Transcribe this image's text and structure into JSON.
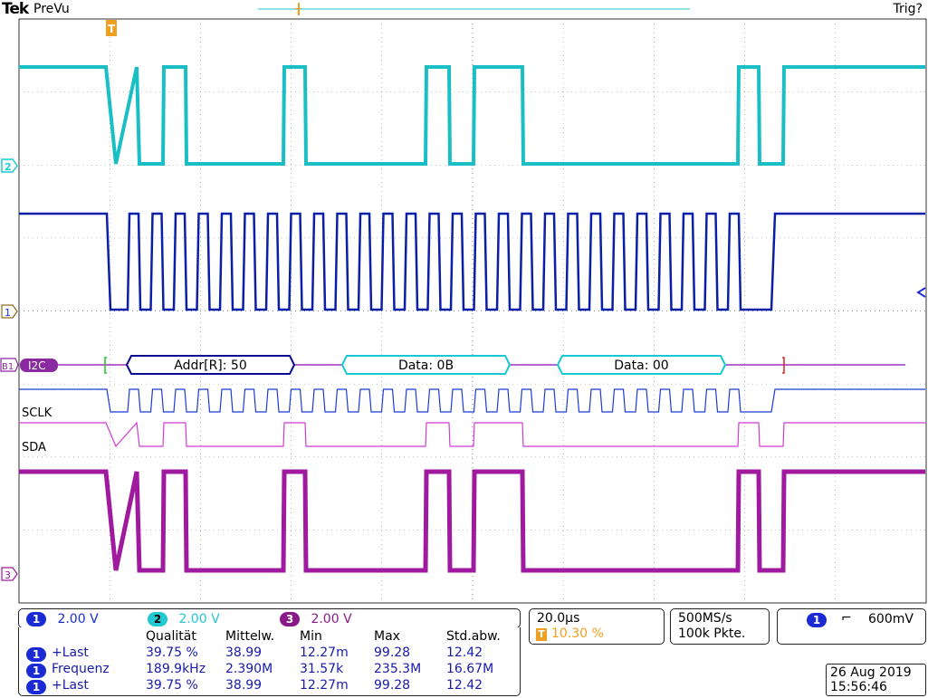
{
  "header": {
    "logo": "Tek",
    "acq_state": "PreVu",
    "trig_status": "Trig?"
  },
  "trigger_marker": {
    "label": "T"
  },
  "channels": {
    "ch2_marker": "2",
    "ch1_marker": "1",
    "ch3_marker": "3",
    "bus_marker": "B1",
    "bus_type": "I2C"
  },
  "bus_decode": [
    {
      "text": "Addr[R]: 50",
      "color": "#0a0a90"
    },
    {
      "text": "Data: 0B",
      "color": "#17c8d4"
    },
    {
      "text": "Data: 00",
      "color": "#17c8d4"
    }
  ],
  "digital_labels": {
    "sclk": "SCLK",
    "sda": "SDA"
  },
  "vertical": [
    {
      "ch": "1",
      "scale": "2.00 V",
      "color": "#1a2bd6"
    },
    {
      "ch": "2",
      "scale": "2.00 V",
      "color": "#22c9d2"
    },
    {
      "ch": "3",
      "scale": "2.00 V",
      "color": "#8a1a8a"
    }
  ],
  "horizontal": {
    "timebase": "20.0µs",
    "trigger_pos_icon": "T",
    "trigger_pos": "10.30 %"
  },
  "acquisition": {
    "sample_rate": "500MS/s",
    "record_length": "100k Pkte."
  },
  "trigger": {
    "source": "1",
    "slope_icon": "falling-edge-icon",
    "slope_glyph": "⌐",
    "level": "600mV"
  },
  "measurements": {
    "headers": [
      "Qualität",
      "Mittelw.",
      "Min",
      "Max",
      "Std.abw."
    ],
    "rows": [
      {
        "source": "1",
        "name": "+Last",
        "values": [
          "39.75 %",
          "38.99",
          "12.27m",
          "99.28",
          "12.42"
        ]
      },
      {
        "source": "1",
        "name": "Frequenz",
        "values": [
          "189.9kHz",
          "2.390M",
          "31.57k",
          "235.3M",
          "16.67M"
        ]
      },
      {
        "source": "1",
        "name": "+Last",
        "values": [
          "39.75 %",
          "38.99",
          "12.27m",
          "99.28",
          "12.42"
        ]
      }
    ]
  },
  "datetime": {
    "date": "26 Aug 2019",
    "time": "15:56:46"
  },
  "colors": {
    "ch1": "#0a1fa8",
    "ch2": "#19bfc4",
    "ch3": "#a01aa0",
    "digital_clk": "#1a3ad6",
    "digital_sda": "#d23ad2",
    "trigger_orange": "#f0a020"
  }
}
